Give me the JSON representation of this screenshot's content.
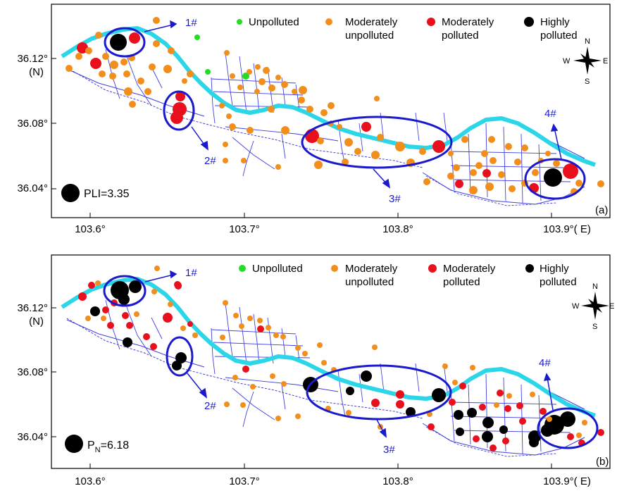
{
  "colors": {
    "unpolluted": "#22dd22",
    "moderately_unpolluted": "#f28e1c",
    "moderately_polluted": "#e8101c",
    "highly_polluted": "#000000",
    "river": "#2ad6e8",
    "roads": "#4040e0",
    "ellipse": "#1a1acc",
    "label": "#1a1acc"
  },
  "legend_labels": {
    "unpolluted": "Unpolluted",
    "moderately_unpolluted": [
      "Moderately",
      "unpolluted"
    ],
    "moderately_polluted": [
      "Moderately",
      "polluted"
    ],
    "highly_polluted": [
      "Highly",
      "polluted"
    ]
  },
  "compass": {
    "n": "N",
    "s": "S",
    "e": "E",
    "w": "W"
  },
  "x_ticks": [
    "103.6°",
    "103.7°",
    "103.8°",
    "103.9°( E)"
  ],
  "y_ticks": [
    "36.12°",
    "36.08°",
    "36.04°"
  ],
  "y_unit": "(N)",
  "area_labels": [
    "1#",
    "2#",
    "3#",
    "4#"
  ],
  "panels": [
    {
      "id": "a",
      "tag": "(a)",
      "key_label": "PLI=3.35"
    },
    {
      "id": "b",
      "tag": "(b)",
      "key_label_main": "P",
      "key_label_sub": "N",
      "key_label_rest": "=6.18"
    }
  ]
}
